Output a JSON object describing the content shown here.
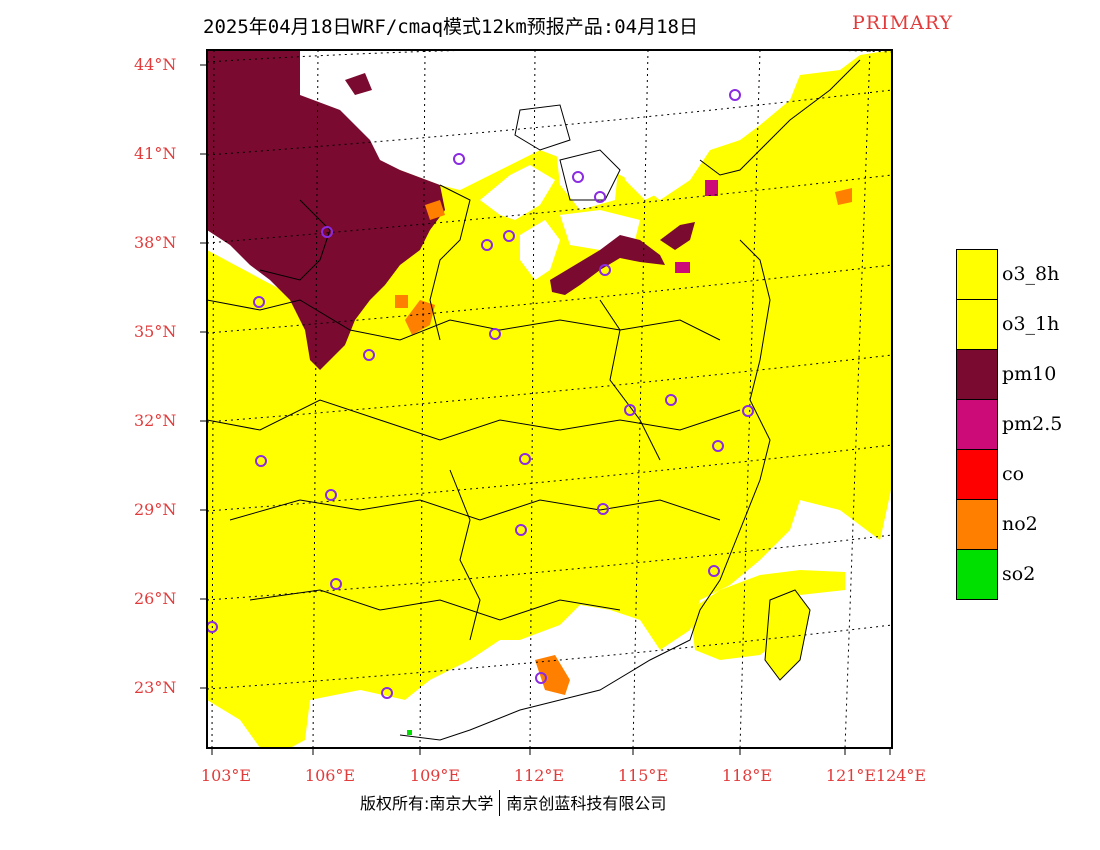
{
  "header": {
    "title": "2025年04月18日WRF/cmaq模式12km预报产品:04月18日",
    "tag": "PRIMARY"
  },
  "axes": {
    "lat_labels": [
      "44°N",
      "41°N",
      "38°N",
      "35°N",
      "32°N",
      "29°N",
      "26°N",
      "23°N"
    ],
    "lon_labels": [
      "103°E",
      "106°E",
      "109°E",
      "112°E",
      "115°E",
      "118°E",
      "121°E",
      "124°E"
    ]
  },
  "legend": {
    "items": [
      {
        "label": "o3_8h",
        "color": "#ffff00"
      },
      {
        "label": "o3_1h",
        "color": "#ffff00"
      },
      {
        "label": "pm10",
        "color": "#7a0a2f"
      },
      {
        "label": "pm2.5",
        "color": "#cc0a78"
      },
      {
        "label": "co",
        "color": "#ff0000"
      },
      {
        "label": "no2",
        "color": "#ff7f00"
      },
      {
        "label": "so2",
        "color": "#00e000"
      }
    ]
  },
  "colors": {
    "label_red": "#e23b3b",
    "station_circle": "#8a2be2",
    "background": "#ffffff"
  },
  "footer": {
    "copyright": "版权所有:南京大学",
    "company": "南京创蓝科技有限公司"
  }
}
